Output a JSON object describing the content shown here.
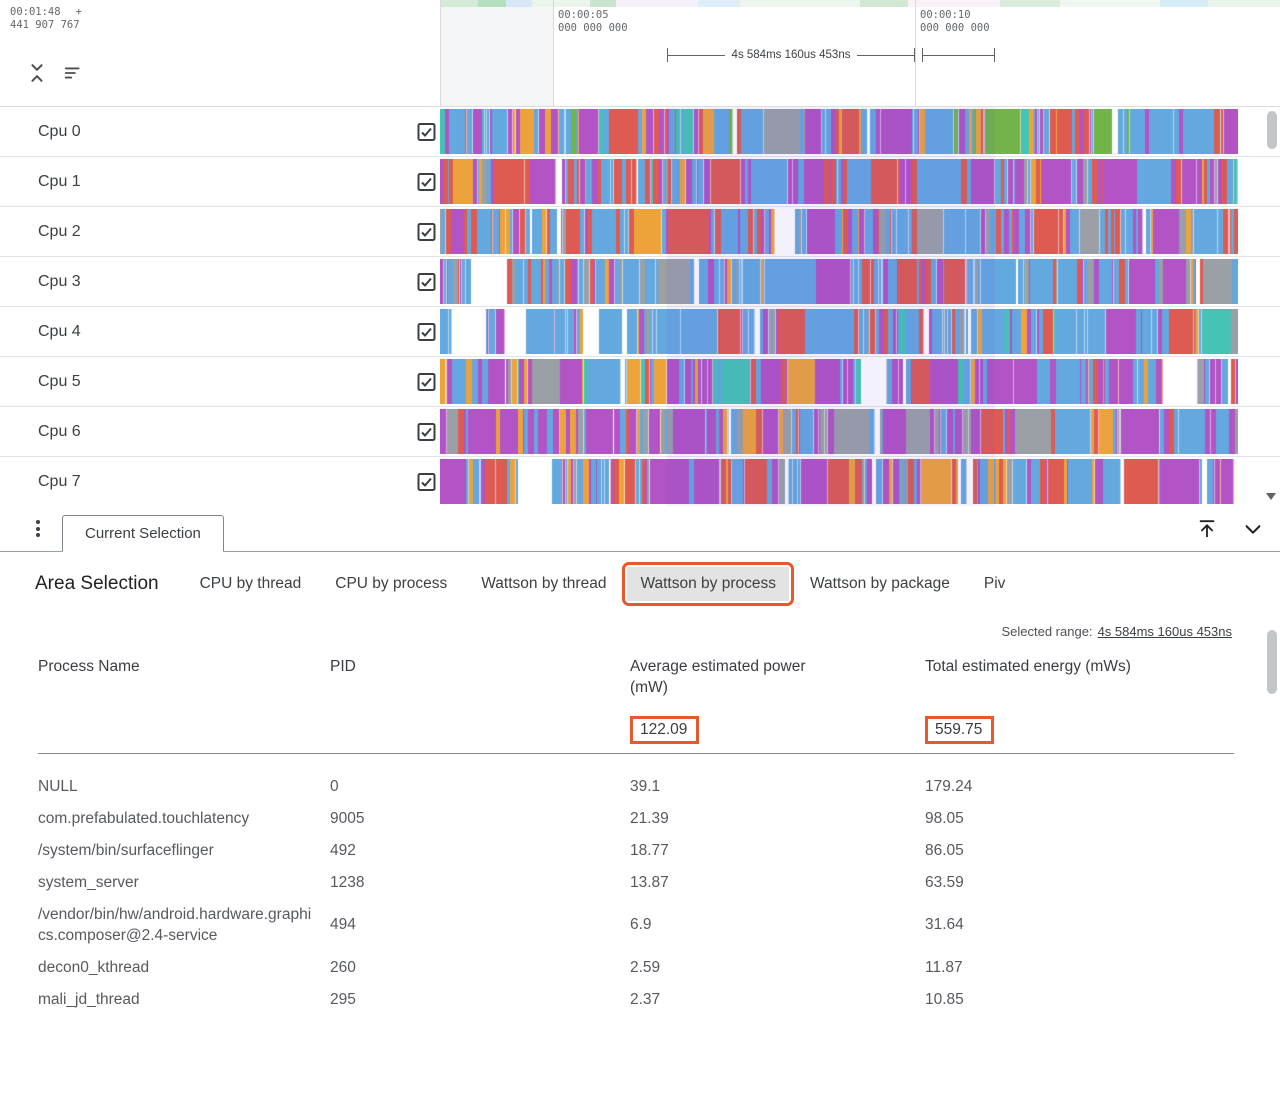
{
  "colors": {
    "annotation": "#e8582c",
    "selection_overlay": "rgba(103,80,220,0.08)"
  },
  "icons": {
    "collapse_tracks": "unfold-less-icon",
    "sort_tracks": "sort-icon",
    "panel_menu": "vertical-dots-icon",
    "expand_panel": "arrow-up-to-line-icon",
    "collapse_panel": "chevron-down-icon",
    "track_checkbox": "checked-checkbox-icon",
    "scroll_down": "triangle-down-icon"
  },
  "ruler": {
    "viewport_time": "00:01:48",
    "viewport_plus": "+",
    "viewport_time_sub": "441 907 767",
    "ticks": [
      {
        "time": "00:00:05",
        "sub": "000 000 000"
      },
      {
        "time": "00:00:10",
        "sub": "000 000 000"
      }
    ],
    "range_label": "4s 584ms 160us 453ns"
  },
  "track_palette": {
    "blue": "#64a8e0",
    "purple": "#b253c6",
    "red": "#de5b52",
    "orange": "#eda33c",
    "teal": "#45c4b5",
    "green": "#72b34a",
    "gray": "#9aa0a6"
  },
  "tracks": [
    {
      "name": "Cpu 0",
      "checked": true,
      "seed": 11,
      "gap": 2,
      "weights": {
        "blue": 38,
        "purple": 22,
        "orange": 14,
        "red": 12,
        "teal": 6,
        "green": 4,
        "gray": 4
      }
    },
    {
      "name": "Cpu 1",
      "checked": true,
      "seed": 22,
      "gap": 2,
      "weights": {
        "blue": 32,
        "red": 28,
        "purple": 26,
        "orange": 6,
        "teal": 4,
        "gray": 4
      }
    },
    {
      "name": "Cpu 2",
      "checked": true,
      "seed": 33,
      "gap": 2,
      "weights": {
        "blue": 42,
        "red": 30,
        "purple": 16,
        "orange": 6,
        "gray": 6
      }
    },
    {
      "name": "Cpu 3",
      "checked": true,
      "seed": 44,
      "gap": 2,
      "weights": {
        "blue": 50,
        "purple": 16,
        "red": 14,
        "gray": 12,
        "orange": 8
      }
    },
    {
      "name": "Cpu 4",
      "checked": true,
      "seed": 55,
      "gap": 4,
      "weights": {
        "blue": 56,
        "purple": 20,
        "red": 8,
        "orange": 6,
        "teal": 6,
        "gray": 4
      }
    },
    {
      "name": "Cpu 5",
      "checked": true,
      "seed": 66,
      "gap": 10,
      "weights": {
        "purple": 38,
        "blue": 34,
        "orange": 9,
        "red": 8,
        "teal": 5,
        "gray": 6
      }
    },
    {
      "name": "Cpu 6",
      "checked": true,
      "seed": 77,
      "gap": 3,
      "weights": {
        "purple": 42,
        "blue": 30,
        "gray": 14,
        "red": 7,
        "orange": 7
      }
    },
    {
      "name": "Cpu 7",
      "checked": true,
      "seed": 88,
      "gap": 8,
      "weights": {
        "blue": 34,
        "purple": 33,
        "red": 16,
        "orange": 9,
        "gray": 8
      }
    }
  ],
  "panel_tab": {
    "label": "Current Selection"
  },
  "detail_panel": {
    "title": "Area Selection",
    "tabs": [
      {
        "label": "CPU by thread",
        "active": false
      },
      {
        "label": "CPU by process",
        "active": false
      },
      {
        "label": "Wattson by thread",
        "active": false
      },
      {
        "label": "Wattson by process",
        "active": true,
        "annotated": true
      },
      {
        "label": "Wattson by package",
        "active": false
      },
      {
        "label": "Piv",
        "active": false
      }
    ]
  },
  "selection_panel": {
    "selected_range_label": "Selected range:",
    "selected_range_value": "4s 584ms 160us 453ns",
    "columns": [
      "Process Name",
      "PID",
      "Average estimated power (mW)",
      "Total estimated energy (mWs)"
    ],
    "totals": {
      "avg_power": "122.09",
      "total_energy": "559.75"
    },
    "rows": [
      {
        "name": "NULL",
        "pid": "0",
        "avg_power": "39.1",
        "total_energy": "179.24"
      },
      {
        "name": "com.prefabulated.touchlatency",
        "pid": "9005",
        "avg_power": "21.39",
        "total_energy": "98.05"
      },
      {
        "name": "/system/bin/surfaceflinger",
        "pid": "492",
        "avg_power": "18.77",
        "total_energy": "86.05"
      },
      {
        "name": "system_server",
        "pid": "1238",
        "avg_power": "13.87",
        "total_energy": "63.59"
      },
      {
        "name": "/vendor/bin/hw/android.hardware.graphics.composer@2.4-service",
        "pid": "494",
        "avg_power": "6.9",
        "total_energy": "31.64"
      },
      {
        "name": "decon0_kthread",
        "pid": "260",
        "avg_power": "2.59",
        "total_energy": "11.87"
      },
      {
        "name": "mali_jd_thread",
        "pid": "295",
        "avg_power": "2.37",
        "total_energy": "10.85"
      }
    ]
  }
}
